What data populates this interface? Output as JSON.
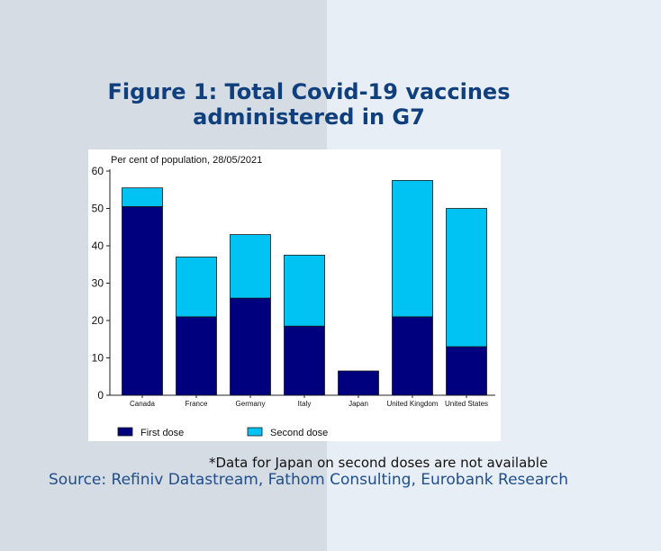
{
  "page": {
    "title_line1": "Figure 1: Total Covid-19 vaccines",
    "title_line2": "administered in G7",
    "note": "*Data for Japan on second doses are not available",
    "source": "Source: Refiniv Datastream, Fathom Consulting, Eurobank Research"
  },
  "colors": {
    "first_dose": "#00007f",
    "second_dose": "#00c3f3",
    "title": "#0f3f7d",
    "source": "#1f4e8a"
  },
  "chart_data": {
    "type": "bar",
    "stacked": true,
    "subtitle": "Per cent of population, 28/05/2021",
    "categories": [
      "Canada",
      "France",
      "Germany",
      "Italy",
      "Japan",
      "United Kingdom",
      "United States"
    ],
    "series": [
      {
        "name": "First dose",
        "values": [
          50.5,
          21,
          26,
          18.5,
          6.5,
          21,
          13
        ]
      },
      {
        "name": "Second dose",
        "values": [
          5,
          16,
          17,
          19,
          0,
          36.5,
          37
        ]
      }
    ],
    "ylim": [
      0,
      60
    ],
    "yticks": [
      0,
      10,
      20,
      30,
      40,
      50,
      60
    ],
    "xlabel": "",
    "ylabel": "",
    "legend_position": "bottom",
    "grid": false
  }
}
